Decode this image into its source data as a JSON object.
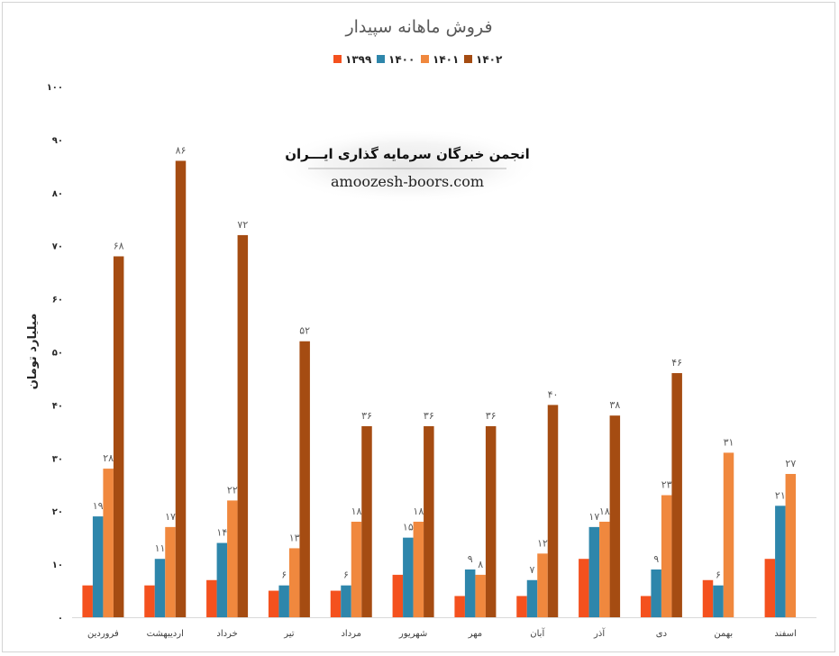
{
  "chart_data": {
    "type": "bar",
    "title": "فروش ماهانه سپیدار",
    "ylabel": "میلیارد تومان",
    "ylim": [
      0,
      100
    ],
    "yticks": [
      "۰",
      "۱۰",
      "۲۰",
      "۳۰",
      "۴۰",
      "۵۰",
      "۶۰",
      "۷۰",
      "۸۰",
      "۹۰",
      "۱۰۰"
    ],
    "grid": false,
    "legend_position": "top-center",
    "categories": [
      "فروردین",
      "اردیبهشت",
      "خرداد",
      "تیر",
      "مرداد",
      "شهریور",
      "مهر",
      "آبان",
      "آذر",
      "دی",
      "بهمن",
      "اسفند"
    ],
    "series": [
      {
        "name": "۱۳۹۹",
        "color": "#f4511e",
        "values": [
          6,
          6,
          7,
          5,
          5,
          8,
          4,
          4,
          11,
          4,
          7,
          11
        ],
        "labels": [
          "",
          "",
          "",
          "",
          "",
          "",
          "",
          "",
          "",
          "",
          "",
          ""
        ]
      },
      {
        "name": "۱۴۰۰",
        "color": "#2e86ab",
        "values": [
          19,
          11,
          14,
          6,
          6,
          15,
          9,
          7,
          17,
          9,
          6,
          21
        ],
        "labels": [
          "۱۹",
          "۱۱",
          "۱۴",
          "۶",
          "۶",
          "۱۵",
          "۹",
          "۷",
          "۱۷",
          "۹",
          "۶",
          "۲۱"
        ]
      },
      {
        "name": "۱۴۰۱",
        "color": "#f0883e",
        "values": [
          28,
          17,
          22,
          13,
          18,
          18,
          8,
          12,
          18,
          23,
          31,
          27
        ],
        "labels": [
          "۲۸",
          "۱۷",
          "۲۲",
          "۱۳",
          "۱۸",
          "۱۸",
          "۸",
          "۱۲",
          "۱۸",
          "۲۳",
          "۳۱",
          "۲۷"
        ]
      },
      {
        "name": "۱۴۰۲",
        "color": "#a54c12",
        "values": [
          68,
          86,
          72,
          52,
          36,
          36,
          36,
          40,
          38,
          46,
          null,
          null
        ],
        "labels": [
          "۶۸",
          "۸۶",
          "۷۲",
          "۵۲",
          "۳۶",
          "۳۶",
          "۳۶",
          "۴۰",
          "۳۸",
          "۴۶",
          "",
          ""
        ]
      }
    ]
  },
  "watermark": {
    "title": "انجمن خبرگان سرمایه گذاری ایـــران",
    "url": "amoozesh-boors.com"
  }
}
